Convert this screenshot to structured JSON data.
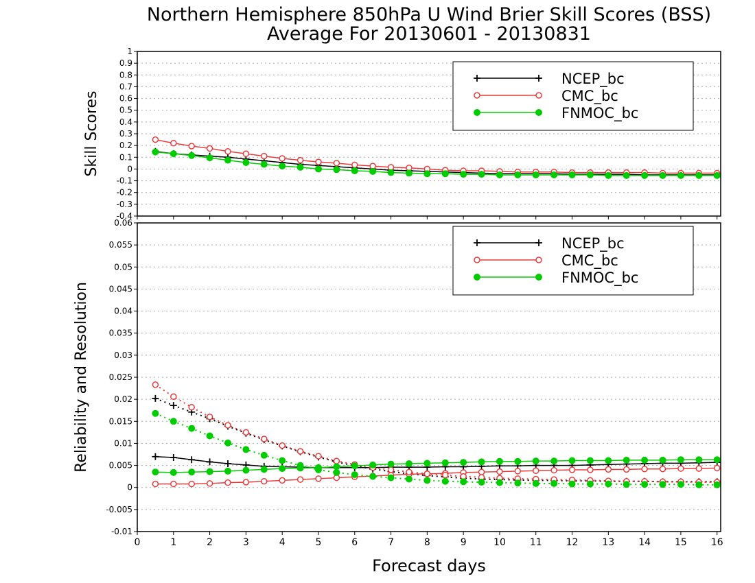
{
  "title_line1": "Northern Hemisphere 850hPa U Wind Brier Skill Scores (BSS)",
  "title_line2": "Average For 20130601 - 20130831",
  "xlabel": "Forecast days",
  "colors": {
    "NCEP_bc": "#000000",
    "CMC_bc": "#e83c3c",
    "FNMOC_bc": "#00cc00",
    "grid": "#aaaaaa"
  },
  "chart_data": [
    {
      "type": "line",
      "ylabel": "Skill Scores",
      "xlim": [
        0,
        16.1
      ],
      "ylim": [
        -0.4,
        1
      ],
      "xticks": [
        "0",
        "1",
        "2",
        "3",
        "4",
        "5",
        "6",
        "7",
        "8",
        "9",
        "10",
        "11",
        "12",
        "13",
        "14",
        "15",
        "16"
      ],
      "yticks": [
        "-0.4",
        "-0.3",
        "-0.2",
        "-0.1",
        "0",
        "0.1",
        "0.2",
        "0.3",
        "0.4",
        "0.5",
        "0.6",
        "0.7",
        "0.8",
        "0.9",
        "1"
      ],
      "grid": true,
      "legend_position": "top-right",
      "x": [
        0.5,
        1,
        1.5,
        2,
        2.5,
        3,
        3.5,
        4,
        4.5,
        5,
        5.5,
        6,
        6.5,
        7,
        7.5,
        8,
        8.5,
        9,
        9.5,
        10,
        10.5,
        11,
        11.5,
        12,
        12.5,
        13,
        13.5,
        14,
        14.5,
        15,
        15.5,
        16
      ],
      "series": [
        {
          "name": "NCEP_bc",
          "style": "solid",
          "marker": "plus",
          "color": "#000000",
          "values": [
            0.15,
            0.13,
            0.12,
            0.11,
            0.1,
            0.085,
            0.07,
            0.055,
            0.04,
            0.03,
            0.02,
            0.01,
            0.0,
            -0.01,
            -0.015,
            -0.02,
            -0.025,
            -0.03,
            -0.035,
            -0.04,
            -0.04,
            -0.04,
            -0.04,
            -0.045,
            -0.045,
            -0.045,
            -0.045,
            -0.05,
            -0.05,
            -0.05,
            -0.05,
            -0.05
          ]
        },
        {
          "name": "CMC_bc",
          "style": "solid",
          "marker": "open-circle",
          "color": "#e83c3c",
          "values": [
            0.25,
            0.22,
            0.195,
            0.175,
            0.15,
            0.13,
            0.11,
            0.09,
            0.075,
            0.06,
            0.05,
            0.035,
            0.025,
            0.015,
            0.01,
            0.0,
            -0.01,
            -0.015,
            -0.015,
            -0.02,
            -0.025,
            -0.025,
            -0.025,
            -0.03,
            -0.03,
            -0.03,
            -0.03,
            -0.03,
            -0.035,
            -0.035,
            -0.035,
            -0.035
          ]
        },
        {
          "name": "FNMOC_bc",
          "style": "solid",
          "marker": "filled-circle",
          "color": "#00cc00",
          "values": [
            0.145,
            0.13,
            0.115,
            0.095,
            0.075,
            0.055,
            0.04,
            0.025,
            0.015,
            0.0,
            -0.005,
            -0.015,
            -0.02,
            -0.03,
            -0.035,
            -0.04,
            -0.04,
            -0.045,
            -0.045,
            -0.05,
            -0.05,
            -0.05,
            -0.05,
            -0.05,
            -0.05,
            -0.055,
            -0.055,
            -0.055,
            -0.055,
            -0.055,
            -0.055,
            -0.055
          ]
        }
      ]
    },
    {
      "type": "line",
      "ylabel": "Reliability and Resolution",
      "xlim": [
        0,
        16.1
      ],
      "ylim": [
        -0.01,
        0.06
      ],
      "xticks": [
        "0",
        "1",
        "2",
        "3",
        "4",
        "5",
        "6",
        "7",
        "8",
        "9",
        "10",
        "11",
        "12",
        "13",
        "14",
        "15",
        "16"
      ],
      "yticks": [
        "-0.01",
        "-0.005",
        "0",
        "0.005",
        "0.01",
        "0.015",
        "0.02",
        "0.025",
        "0.03",
        "0.035",
        "0.04",
        "0.045",
        "0.05",
        "0.055",
        "0.06"
      ],
      "grid": true,
      "legend_position": "top-right",
      "x": [
        0.5,
        1,
        1.5,
        2,
        2.5,
        3,
        3.5,
        4,
        4.5,
        5,
        5.5,
        6,
        6.5,
        7,
        7.5,
        8,
        8.5,
        9,
        9.5,
        10,
        10.5,
        11,
        11.5,
        12,
        12.5,
        13,
        13.5,
        14,
        14.5,
        15,
        15.5,
        16
      ],
      "series": [
        {
          "name": "NCEP_bc",
          "style": "solid",
          "marker": "plus",
          "color": "#000000",
          "values": [
            0.007,
            0.0068,
            0.0063,
            0.0058,
            0.0054,
            0.0051,
            0.0048,
            0.0047,
            0.0046,
            0.0045,
            0.0045,
            0.0045,
            0.0045,
            0.0046,
            0.0046,
            0.0046,
            0.0047,
            0.0047,
            0.0048,
            0.0049,
            0.0049,
            0.005,
            0.005,
            0.005,
            0.0051,
            0.0052,
            0.0053,
            0.0054,
            0.0055,
            0.0055,
            0.0056,
            0.0057
          ]
        },
        {
          "name": "NCEP_bc",
          "style": "dotted",
          "marker": "plus",
          "color": "#000000",
          "values": [
            0.0202,
            0.0186,
            0.0171,
            0.0156,
            0.0139,
            0.0123,
            0.0108,
            0.0094,
            0.0081,
            0.0069,
            0.0058,
            0.0049,
            0.0042,
            0.0036,
            0.0031,
            0.0027,
            0.0024,
            0.0021,
            0.0019,
            0.0018,
            0.0017,
            0.0016,
            0.0016,
            0.0015,
            0.0015,
            0.0014,
            0.0014,
            0.0014,
            0.0013,
            0.0013,
            0.0013,
            0.0013
          ]
        },
        {
          "name": "CMC_bc",
          "style": "solid",
          "marker": "open-circle",
          "color": "#e83c3c",
          "values": [
            0.0008,
            0.0008,
            0.0008,
            0.0009,
            0.0011,
            0.0012,
            0.0014,
            0.0016,
            0.0018,
            0.002,
            0.0022,
            0.0024,
            0.0026,
            0.0028,
            0.003,
            0.0031,
            0.0032,
            0.0034,
            0.0035,
            0.0036,
            0.0037,
            0.0038,
            0.0039,
            0.004,
            0.004,
            0.0041,
            0.0041,
            0.0042,
            0.0042,
            0.0043,
            0.0043,
            0.0044
          ]
        },
        {
          "name": "CMC_bc",
          "style": "dotted",
          "marker": "open-circle",
          "color": "#e83c3c",
          "values": [
            0.0233,
            0.0206,
            0.0182,
            0.016,
            0.0141,
            0.0125,
            0.011,
            0.0095,
            0.0082,
            0.0071,
            0.006,
            0.0052,
            0.0045,
            0.004,
            0.0035,
            0.0031,
            0.0028,
            0.0025,
            0.0023,
            0.0021,
            0.002,
            0.0019,
            0.0018,
            0.0017,
            0.0016,
            0.0015,
            0.0014,
            0.0014,
            0.0013,
            0.0013,
            0.0012,
            0.0012
          ]
        },
        {
          "name": "FNMOC_bc",
          "style": "solid",
          "marker": "filled-circle",
          "color": "#00cc00",
          "values": [
            0.0035,
            0.0034,
            0.0035,
            0.0036,
            0.0037,
            0.0039,
            0.0041,
            0.0043,
            0.0044,
            0.0045,
            0.0047,
            0.0049,
            0.0051,
            0.0053,
            0.0054,
            0.0055,
            0.0056,
            0.0057,
            0.0058,
            0.0059,
            0.0059,
            0.006,
            0.006,
            0.0061,
            0.0061,
            0.0061,
            0.0062,
            0.0062,
            0.0062,
            0.0063,
            0.0063,
            0.0063
          ]
        },
        {
          "name": "FNMOC_bc",
          "style": "dotted",
          "marker": "filled-circle",
          "color": "#00cc00",
          "values": [
            0.0168,
            0.015,
            0.0134,
            0.0117,
            0.0101,
            0.0086,
            0.0073,
            0.0061,
            0.005,
            0.004,
            0.0034,
            0.0029,
            0.0025,
            0.0022,
            0.0019,
            0.0016,
            0.0014,
            0.0013,
            0.0012,
            0.0011,
            0.001,
            0.0009,
            0.0009,
            0.0008,
            0.0008,
            0.0008,
            0.0007,
            0.0007,
            0.0007,
            0.0007,
            0.0006,
            0.0006
          ]
        }
      ]
    }
  ]
}
